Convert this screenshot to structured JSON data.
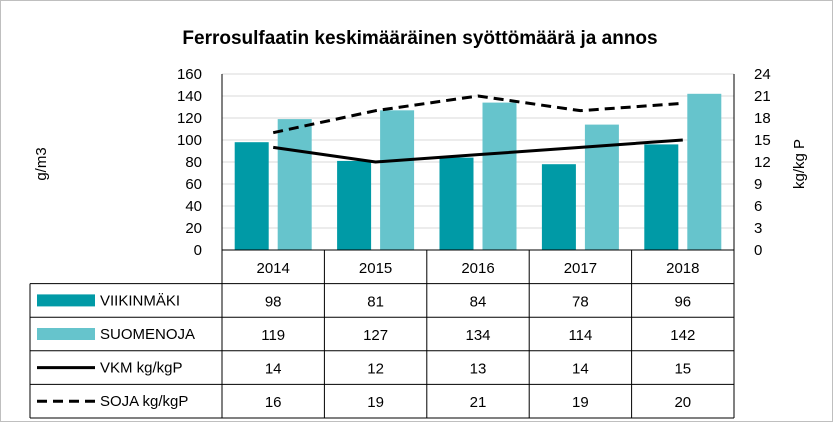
{
  "chart_data": {
    "type": "bar",
    "title": "Ferrosulfaatin keskimääräinen syöttömäärä ja annos",
    "ylabel": "g/m3",
    "y2label": "kg/kg P",
    "ylim": [
      0,
      160
    ],
    "yticks": [
      0,
      20,
      40,
      60,
      80,
      100,
      120,
      140,
      160
    ],
    "y2lim": [
      0,
      24
    ],
    "y2ticks": [
      0,
      3,
      6,
      9,
      12,
      15,
      18,
      21,
      24
    ],
    "categories": [
      "2014",
      "2015",
      "2016",
      "2017",
      "2018"
    ],
    "data_table": true,
    "series": [
      {
        "name": "VIIKINMÄKI",
        "kind": "bar",
        "axis": "left",
        "color": "#009aa6",
        "values": [
          98,
          81,
          84,
          78,
          96
        ]
      },
      {
        "name": "SUOMENOJA",
        "kind": "bar",
        "axis": "left",
        "color": "#66c4cc",
        "values": [
          119,
          127,
          134,
          114,
          142
        ]
      },
      {
        "name": "VKM kg/kgP",
        "kind": "line",
        "style": "solid",
        "axis": "right",
        "color": "#000000",
        "values": [
          14,
          12,
          13,
          14,
          15
        ]
      },
      {
        "name": "SOJA kg/kgP",
        "kind": "line",
        "style": "dashed",
        "axis": "right",
        "color": "#000000",
        "values": [
          16,
          19,
          21,
          19,
          20
        ]
      }
    ]
  }
}
